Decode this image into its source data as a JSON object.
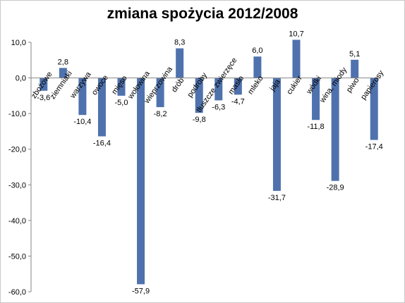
{
  "chart_data": {
    "type": "bar",
    "title": "zmiana spożycia 2012/2008",
    "xlabel": "",
    "ylabel": "",
    "ylim": [
      -60,
      10
    ],
    "ytick_values": [
      10,
      0,
      -10,
      -20,
      -30,
      -40,
      -50,
      -60
    ],
    "ytick_labels": [
      "10,0",
      "0,0",
      "-10,0",
      "-20,0",
      "-30,0",
      "-40,0",
      "-50,0",
      "-60,0"
    ],
    "grid": false,
    "legend": "none",
    "categories": [
      "zbożowe",
      "ziemniaki",
      "warzywa",
      "owoce",
      "mięso",
      "wołowina",
      "wieprzowina",
      "drób",
      "podroby",
      "tłuszcze zwierzęce",
      "masło",
      "mleko",
      "jaja",
      "cukier",
      "wódki",
      "wina, miody",
      "piwo",
      "papierosy"
    ],
    "values": [
      -3.6,
      2.8,
      -10.4,
      -16.4,
      -5.0,
      -57.9,
      -8.2,
      8.3,
      -9.8,
      -6.3,
      -4.7,
      6.0,
      -31.7,
      10.7,
      -11.8,
      -28.9,
      5.1,
      -17.4
    ],
    "data_labels": [
      "-3,6",
      "2,8",
      "-10,4",
      "-16,4",
      "-5,0",
      "-57,9",
      "-8,2",
      "8,3",
      "-9,8",
      "-6,3",
      "-4,7",
      "6,0",
      "-31,7",
      "10,7",
      "-11,8",
      "-28,9",
      "5,1",
      "-17,4"
    ],
    "bar_color": "#4f72ae"
  }
}
